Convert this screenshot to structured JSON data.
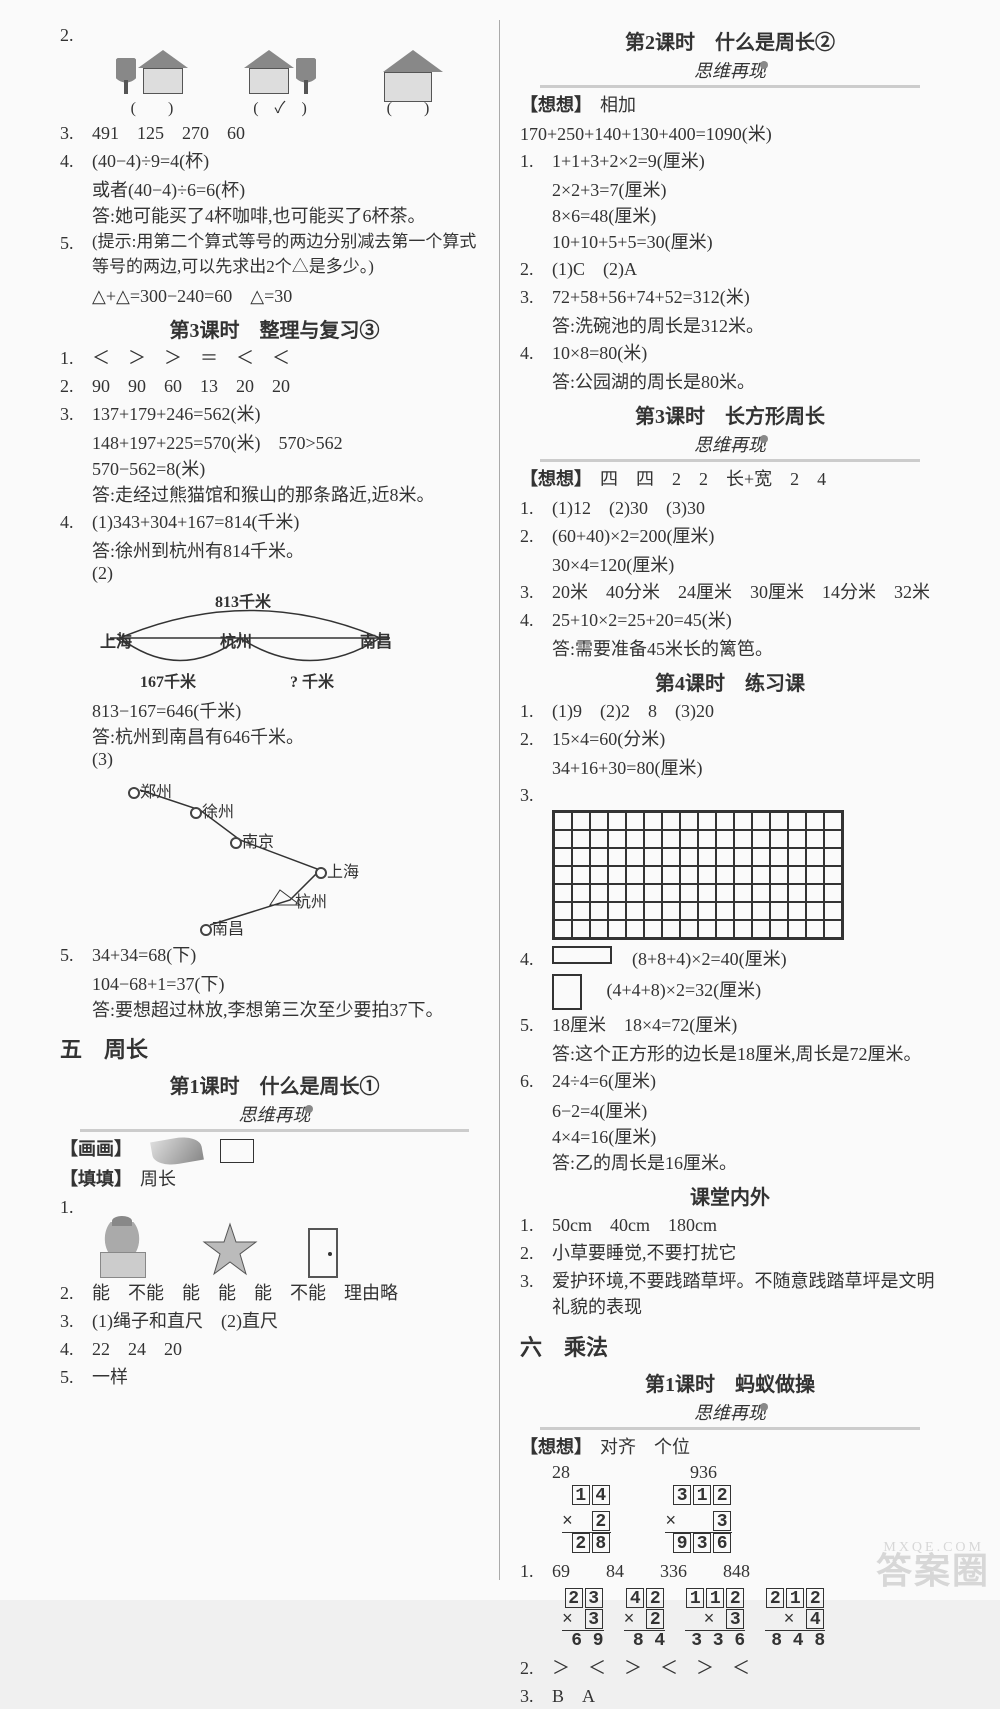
{
  "left": {
    "q2_checks": [
      "(　　)",
      "(　✓　)",
      "(　　)"
    ],
    "q3": "491　125　270　60",
    "q4": {
      "l1": "(40−4)÷9=4(杯)",
      "l2": "或者(40−4)÷6=6(杯)",
      "l3": "答:她可能买了4杯咖啡,也可能买了6杯茶。"
    },
    "q5": {
      "l1": "(提示:用第二个算式等号的两边分别减去第一个算式等号的两边,可以先求出2个△是多少。)",
      "l2": "△+△=300−240=60　△=30"
    },
    "lesson3_title": "第3课时　整理与复习③",
    "l3_1": "＜　＞　＞　＝　＜　＜",
    "l3_2": "90　90　60　13　20　20",
    "l3_3": {
      "a": "137+179+246=562(米)",
      "b": "148+197+225=570(米)　570>562",
      "c": "570−562=8(米)",
      "d": "答:走经过熊猫馆和猴山的那条路近,近8米。"
    },
    "l3_4": {
      "a": "(1)343+304+167=814(千米)",
      "b": "答:徐州到杭州有814千米。",
      "c": "(2)",
      "arc_top": "813千米",
      "arc_cities": [
        "上海",
        "杭州",
        "南昌"
      ],
      "arc_bot_left": "167千米",
      "arc_bot_right": "? 千米",
      "d": "813−167=646(千米)",
      "e": "答:杭州到南昌有646千米。",
      "f": "(3)",
      "map_cities": {
        "zhengzhou": "郑州",
        "xuzhou": "徐州",
        "nanjing": "南京",
        "shanghai": "上海",
        "hangzhou": "杭州",
        "nanchang": "南昌"
      }
    },
    "l3_5": {
      "a": "34+34=68(下)",
      "b": "104−68+1=37(下)",
      "c": "答:要想超过林放,李想第三次至少要拍37下。"
    },
    "unit5": "五　周长",
    "u5_l1_title": "第1课时　什么是周长①",
    "siwei": "思维再现",
    "huahua": "【画画】",
    "tiantian_label": "【填填】",
    "tiantian": "周长",
    "u5_2": "能　不能　能　能　能　不能　理由略",
    "u5_3": "(1)绳子和直尺　(2)直尺",
    "u5_4": "22　24　20",
    "u5_5": "一样"
  },
  "right": {
    "l2_title": "第2课时　什么是周长②",
    "siwei": "思维再现",
    "xiang_label": "【想想】",
    "xiang": "相加",
    "l2_eq": "170+250+140+130+400=1090(米)",
    "l2_1": {
      "a": "1+1+3+2×2=9(厘米)",
      "b": "2×2+3=7(厘米)",
      "c": "8×6=48(厘米)",
      "d": "10+10+5+5=30(厘米)"
    },
    "l2_2": "(1)C　(2)A",
    "l2_3": {
      "a": "72+58+56+74+52=312(米)",
      "b": "答:洗碗池的周长是312米。"
    },
    "l2_4": {
      "a": "10×8=80(米)",
      "b": "答:公园湖的周长是80米。"
    },
    "l3_title": "第3课时　长方形周长",
    "l3_xiang": "四　四　2　2　长+宽　2　4",
    "l3_1": "(1)12　(2)30　(3)30",
    "l3_2": {
      "a": "(60+40)×2=200(厘米)",
      "b": "30×4=120(厘米)"
    },
    "l3_3": "20米　40分米　24厘米　30厘米　14分米　32米",
    "l3_4": {
      "a": "25+10×2=25+20=45(米)",
      "b": "答:需要准备45米长的篱笆。"
    },
    "l4_title": "第4课时　练习课",
    "l4_1": "(1)9　(2)2　8　(3)20",
    "l4_2": {
      "a": "15×4=60(分米)",
      "b": "34+16+30=80(厘米)"
    },
    "l4_4a": "(8+8+4)×2=40(厘米)",
    "l4_4b": "(4+4+8)×2=32(厘米)",
    "l4_5": {
      "a": "18厘米　18×4=72(厘米)",
      "b": "答:这个正方形的边长是18厘米,周长是72厘米。"
    },
    "l4_6": {
      "a": "24÷4=6(厘米)",
      "b": "6−2=4(厘米)",
      "c": "4×4=16(厘米)",
      "d": "答:乙的周长是16厘米。"
    },
    "ktny_title": "课堂内外",
    "kt_1": "50cm　40cm　180cm",
    "kt_2": "小草要睡觉,不要打扰它",
    "kt_3": "爱护环境,不要践踏草坪。不随意践踏草坪是文明礼貌的表现",
    "unit6": "六　乘法",
    "u6_l1_title": "第1课时　蚂蚁做操",
    "u6_xiang": "对齐　个位",
    "vm_head": {
      "a": "28",
      "b": "936"
    },
    "vm_a": {
      "top": [
        "1",
        "4"
      ],
      "mid": "2",
      "bot": [
        "2",
        "8"
      ]
    },
    "vm_b": {
      "top": [
        "3",
        "1",
        "2"
      ],
      "mid": "3",
      "bot": [
        "9",
        "3",
        "6"
      ]
    },
    "u6_1_head": "69　　84　　336　　848",
    "u6_1": [
      {
        "top": [
          "2",
          "3"
        ],
        "mid": "3",
        "bot": "6 9"
      },
      {
        "top": [
          "4",
          "2"
        ],
        "mid": "2",
        "bot": "8 4"
      },
      {
        "top": [
          "1",
          "1",
          "2"
        ],
        "mid": "3",
        "bot": "3 3 6"
      },
      {
        "top": [
          "2",
          "1",
          "2"
        ],
        "mid": "4",
        "bot": "8 4 8"
      }
    ],
    "u6_2": "＞　＜　＞　＜　＞　＜",
    "u6_3": "B　A"
  },
  "watermark": "答案圈",
  "watermark_sub": "MXQE.COM"
}
